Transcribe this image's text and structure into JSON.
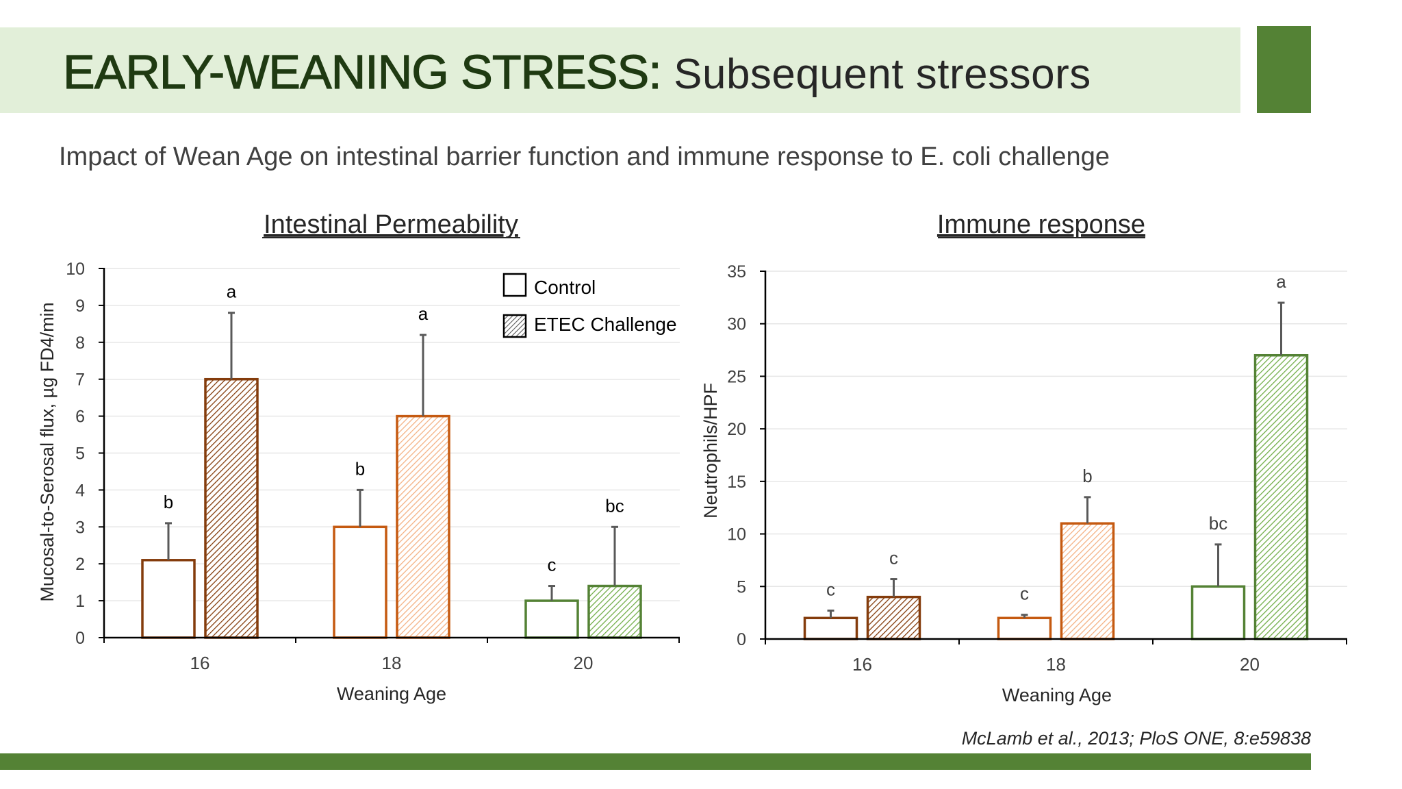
{
  "slide": {
    "title_bold": "EARLY-WEANING STRESS:",
    "title_rest": "Subsequent stressors",
    "subtitle": "Impact of Wean Age on intestinal barrier function and immune response to E. coli challenge",
    "citation": "McLamb et al., 2013; PloS ONE, 8:e59838"
  },
  "colors": {
    "title_band": "#e2efd9",
    "accent_green": "#548235",
    "wean16": "#843c0c",
    "wean18": "#c55a11",
    "wean18_light": "#f4b183",
    "wean20": "#548235",
    "wean20_light": "#70ad47"
  },
  "chart_data": [
    {
      "type": "bar",
      "title": "Intestinal Permeability",
      "xlabel": "Weaning Age",
      "ylabel": "Mucosal-to-Serosal flux, µg FD4/min",
      "categories": [
        "16",
        "18",
        "20"
      ],
      "ylim": [
        0,
        10
      ],
      "yticks": [
        0,
        1,
        2,
        3,
        4,
        5,
        6,
        7,
        8,
        9,
        10
      ],
      "grid": true,
      "legend_position": "top-right",
      "series": [
        {
          "name": "Control",
          "fill": "open",
          "values": [
            2.1,
            3.0,
            1.0
          ],
          "errors": [
            1.0,
            1.0,
            0.4
          ],
          "letters": [
            "b",
            "b",
            "c"
          ]
        },
        {
          "name": "ETEC Challenge",
          "fill": "hatched",
          "values": [
            7.0,
            6.0,
            1.4
          ],
          "errors": [
            1.8,
            2.2,
            1.6
          ],
          "letters": [
            "a",
            "a",
            "bc"
          ]
        }
      ]
    },
    {
      "type": "bar",
      "title": "Immune response",
      "xlabel": "Weaning Age",
      "ylabel": "Neutrophils/HPF",
      "categories": [
        "16",
        "18",
        "20"
      ],
      "ylim": [
        0,
        35
      ],
      "yticks": [
        0,
        5,
        10,
        15,
        20,
        25,
        30,
        35
      ],
      "grid": true,
      "series": [
        {
          "fill": "open",
          "values": [
            2,
            2,
            5
          ],
          "errors": [
            0.7,
            0.3,
            4
          ],
          "letters": [
            "c",
            "c",
            "bc"
          ]
        },
        {
          "fill": "hatched",
          "values": [
            4,
            11,
            27
          ],
          "errors": [
            1.7,
            2.5,
            5
          ],
          "letters": [
            "c",
            "b",
            "a"
          ]
        }
      ]
    }
  ]
}
